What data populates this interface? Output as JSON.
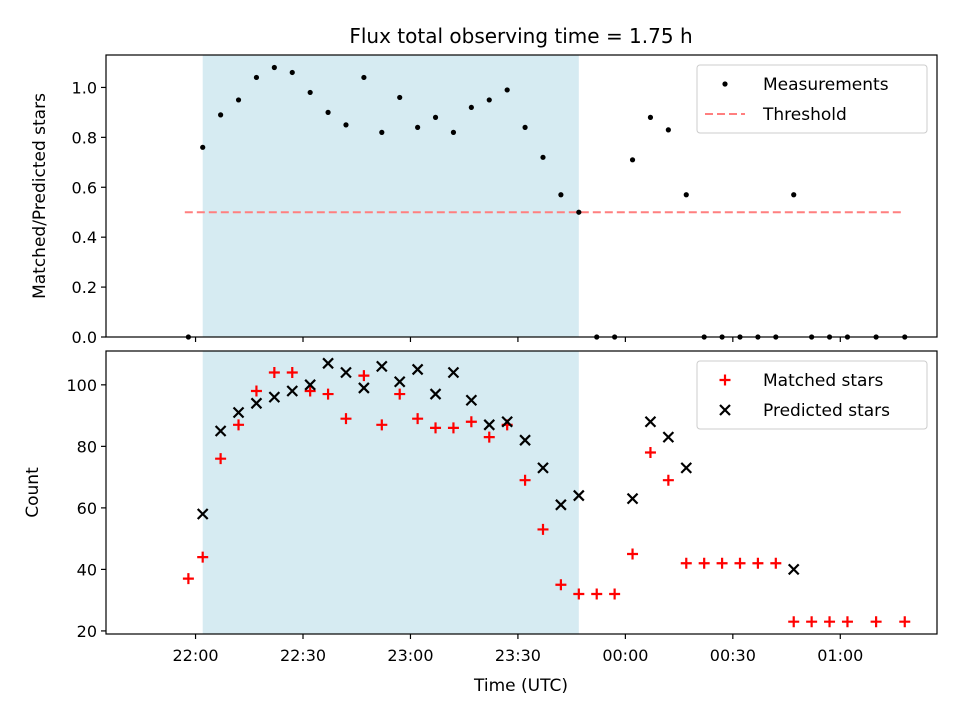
{
  "chart_data": {
    "title": "Flux total observing time = 1.75 h",
    "xlabel": "Time (UTC)",
    "x_unit": "minutes relative to 22:00 UTC",
    "xlim": [
      -25,
      207
    ],
    "x_ticks": [
      {
        "label": "22:00",
        "value": 0
      },
      {
        "label": "22:30",
        "value": 30
      },
      {
        "label": "23:00",
        "value": 60
      },
      {
        "label": "23:30",
        "value": 90
      },
      {
        "label": "00:00",
        "value": 120
      },
      {
        "label": "00:30",
        "value": 150
      },
      {
        "label": "01:00",
        "value": 180
      }
    ],
    "shaded_region": {
      "start": 2,
      "end": 107,
      "color": "#add8e6"
    },
    "colors": {
      "measurements": "#000000",
      "threshold": "#ff7f7f",
      "matched": "#ff0000",
      "predicted": "#000000",
      "shade": "#add8e6"
    },
    "panels": [
      {
        "type": "scatter",
        "ylabel": "Matched/Predicted stars",
        "ylim": [
          0,
          1.13
        ],
        "y_ticks": [
          0.0,
          0.2,
          0.4,
          0.6,
          0.8,
          1.0
        ],
        "y_tick_labels": [
          "0.0",
          "0.2",
          "0.4",
          "0.6",
          "0.8",
          "1.0"
        ],
        "legend_position": "top-right",
        "threshold": {
          "name": "Threshold",
          "value": 0.5,
          "x_range": [
            -3,
            198
          ]
        },
        "series": [
          {
            "name": "Measurements",
            "marker": "dot",
            "x": [
              -2,
              2,
              7,
              12,
              17,
              22,
              27,
              32,
              37,
              42,
              47,
              52,
              57,
              62,
              67,
              72,
              77,
              82,
              87,
              92,
              97,
              102,
              107,
              112,
              117,
              122,
              127,
              132,
              137,
              142,
              147,
              152,
              157,
              162,
              167,
              172,
              177,
              182,
              190,
              198
            ],
            "y": [
              0.0,
              0.76,
              0.89,
              0.95,
              1.04,
              1.08,
              1.06,
              0.98,
              0.9,
              0.85,
              1.04,
              0.82,
              0.96,
              0.84,
              0.88,
              0.82,
              0.92,
              0.95,
              0.99,
              0.84,
              0.72,
              0.57,
              0.5,
              0.0,
              0.0,
              0.71,
              0.88,
              0.83,
              0.57,
              0.0,
              0.0,
              0.0,
              0.0,
              0.0,
              0.57,
              0.0,
              0.0,
              0.0,
              0.0,
              0.0
            ]
          }
        ]
      },
      {
        "type": "scatter",
        "ylabel": "Count",
        "ylim": [
          19,
          111
        ],
        "y_ticks": [
          20,
          40,
          60,
          80,
          100
        ],
        "y_tick_labels": [
          "20",
          "40",
          "60",
          "80",
          "100"
        ],
        "legend_position": "top-right",
        "series": [
          {
            "name": "Matched stars",
            "marker": "plus",
            "x": [
              -2,
              2,
              7,
              12,
              17,
              22,
              27,
              32,
              37,
              42,
              47,
              52,
              57,
              62,
              67,
              72,
              77,
              82,
              87,
              92,
              97,
              102,
              107,
              112,
              117,
              122,
              127,
              132,
              137,
              142,
              147,
              152,
              157,
              162,
              167,
              172,
              177,
              182,
              190,
              198
            ],
            "y": [
              37,
              44,
              76,
              87,
              98,
              104,
              104,
              98,
              97,
              89,
              103,
              87,
              97,
              89,
              86,
              86,
              88,
              83,
              87,
              69,
              53,
              35,
              32,
              32,
              32,
              45,
              78,
              69,
              42,
              42,
              42,
              42,
              42,
              42,
              23,
              23,
              23,
              23,
              23,
              23
            ]
          },
          {
            "name": "Predicted stars",
            "marker": "x",
            "x": [
              2,
              7,
              12,
              17,
              22,
              27,
              32,
              37,
              42,
              47,
              52,
              57,
              62,
              67,
              72,
              77,
              82,
              87,
              92,
              97,
              102,
              107,
              122,
              127,
              132,
              137,
              167
            ],
            "y": [
              58,
              85,
              91,
              94,
              96,
              98,
              100,
              107,
              104,
              99,
              106,
              101,
              105,
              97,
              104,
              95,
              87,
              88,
              82,
              73,
              61,
              64,
              63,
              88,
              83,
              73,
              40
            ]
          }
        ]
      }
    ]
  }
}
